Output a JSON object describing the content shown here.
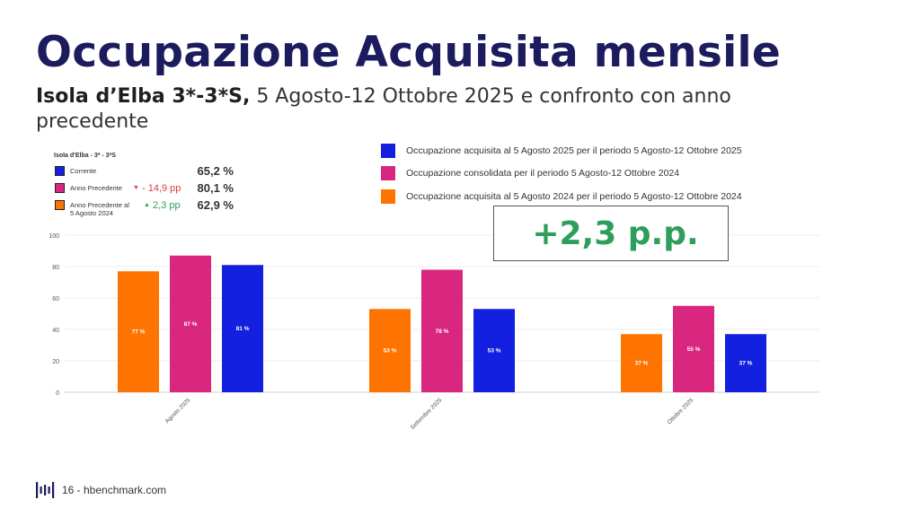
{
  "header": {
    "title": "Occupazione Acquisita mensile",
    "subtitle_bold": "Isola d’Elba 3*-3*S,",
    "subtitle_rest": " 5 Agosto-12 Ottobre 2025 e confronto con anno precedente"
  },
  "legend": [
    {
      "label": "Occupazione acquisita al 5 Agosto 2025 per il periodo 5 Agosto-12 Ottobre 2025",
      "color": "#1420e0"
    },
    {
      "label": "Occupazione consolidata per il periodo 5 Agosto-12 Ottobre 2024",
      "color": "#d9277f"
    },
    {
      "label": "Occupazione acquisita al 5 Agosto 2024 per il periodo 5 Agosto-12 Ottobre 2024",
      "color": "#ff7300"
    }
  ],
  "kpi": {
    "title": "Isola d'Elba - 3* - 3*S",
    "rows": [
      {
        "label_lines": [
          "Corrente"
        ],
        "value": "65,2 %",
        "delta": "",
        "delta_color": "",
        "color": "#1420e0"
      },
      {
        "label_lines": [
          "Anno Precedente"
        ],
        "value": "80,1 %",
        "delta": "- 14,9 pp",
        "delta_color": "#e0393e",
        "delta_arrow": "down",
        "color": "#d9277f"
      },
      {
        "label_lines": [
          "Anno Precedente al",
          "5 Agosto 2024"
        ],
        "value": "62,9 %",
        "delta": "2,3 pp",
        "delta_color": "#2e9e5b",
        "delta_arrow": "up",
        "color": "#ff7300"
      }
    ]
  },
  "highlight": {
    "text": "+2,3 p.p."
  },
  "chart_data": {
    "type": "bar",
    "categories": [
      "Agosto 2025",
      "Settembre 2025",
      "Ottobre 2025"
    ],
    "series": [
      {
        "values": [
          77,
          53,
          37
        ],
        "labels": [
          "77 %",
          "53 %",
          "37 %"
        ],
        "color": "#ff7300"
      },
      {
        "values": [
          87,
          78,
          55
        ],
        "labels": [
          "87 %",
          "78 %",
          "55 %"
        ],
        "color": "#d9277f"
      },
      {
        "values": [
          81,
          53,
          37
        ],
        "labels": [
          "81 %",
          "53 %",
          "37 %"
        ],
        "color": "#1420e0"
      }
    ],
    "ylim": [
      0,
      100
    ],
    "yticks": [
      0,
      20,
      40,
      60,
      80,
      100
    ],
    "grid": true
  },
  "footer": {
    "text": "16 - hbenchmark.com"
  }
}
